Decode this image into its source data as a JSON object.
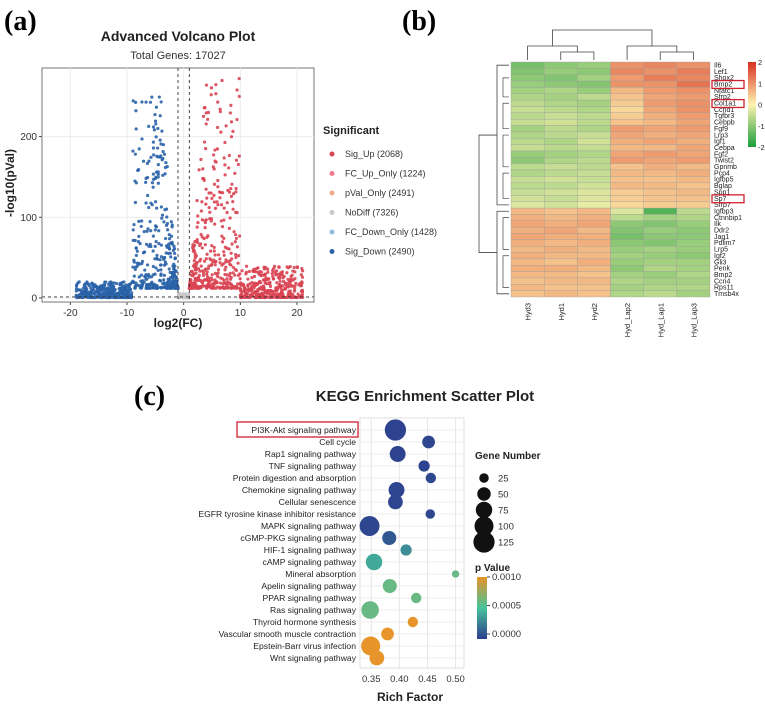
{
  "panels": {
    "a": {
      "label": "(a)"
    },
    "b": {
      "label": "(b)"
    },
    "c": {
      "label": "(c)"
    }
  },
  "chart_data": [
    {
      "id": "volcano",
      "type": "scatter",
      "title": "Advanced Volcano Plot",
      "subtitle": "Total Genes: 17027",
      "xlabel": "log2(FC)",
      "ylabel": "-log10(pVal)",
      "xlim": [
        -25,
        23
      ],
      "ylim": [
        -5,
        285
      ],
      "xticks": [
        -20,
        -10,
        0,
        10,
        20
      ],
      "yticks": [
        0,
        100,
        200
      ],
      "thresholds": {
        "x": [
          -1,
          1
        ],
        "y": [
          1.3
        ]
      },
      "grid": true,
      "legend": {
        "title": "Significant",
        "position": "right",
        "items": [
          {
            "label": "Sig_Up (2068)",
            "color": "#d94452"
          },
          {
            "label": "FC_Up_Only (1224)",
            "color": "#f07b8a"
          },
          {
            "label": "pVal_Only (2491)",
            "color": "#f2a98e"
          },
          {
            "label": "NoDiff (7326)",
            "color": "#c8c8c8"
          },
          {
            "label": "FC_Down_Only (1428)",
            "color": "#8fbde0"
          },
          {
            "label": "Sig_Down (2490)",
            "color": "#2a63a8"
          }
        ]
      }
    },
    {
      "id": "heatmap",
      "type": "heatmap",
      "columns": [
        "Hyd3",
        "Hyd1",
        "Hyd2",
        "Hyd_Lap2",
        "Hyd_Lap1",
        "Hyd_Lap3"
      ],
      "rows": [
        "Il6",
        "Lef1",
        "Shox2",
        "Bmp2",
        "Nfatc1",
        "Sfrp2",
        "Col1a1",
        "Ccnd1",
        "Tgfbr3",
        "Cebpb",
        "Fgf9",
        "Lrp3",
        "Igf1",
        "Cebpa",
        "Fgf2",
        "Twist2",
        "Gpnmb",
        "Pcp4",
        "Igfbp5",
        "Bglap",
        "Spp1",
        "Sp7",
        "Sfrp7",
        "Igfbp3",
        "Ctnnbip1",
        "Ilk",
        "Ddr2",
        "Jag1",
        "Pdlim7",
        "Lrp5",
        "Igf2",
        "Gli3",
        "Penk",
        "Bmp2",
        "Ccn4",
        "Rps11",
        "Tmsb4x"
      ],
      "highlighted_rows": [
        "Bmp2",
        "Col1a1",
        "Sp7"
      ],
      "values": [
        [
          -1.2,
          -1.0,
          -0.9,
          1.0,
          1.1,
          1.0
        ],
        [
          -1.1,
          -0.9,
          -1.0,
          1.1,
          1.0,
          1.2
        ],
        [
          -1.0,
          -1.1,
          -0.8,
          0.9,
          1.2,
          1.1
        ],
        [
          -0.9,
          -1.0,
          -1.1,
          1.0,
          1.0,
          1.3
        ],
        [
          -0.8,
          -0.7,
          -0.9,
          0.6,
          0.9,
          1.0
        ],
        [
          -0.7,
          -0.8,
          -0.6,
          0.5,
          0.8,
          0.9
        ],
        [
          -0.6,
          -0.7,
          -0.8,
          0.4,
          0.9,
          1.0
        ],
        [
          -0.5,
          -0.6,
          -0.7,
          0.3,
          0.8,
          1.0
        ],
        [
          -0.6,
          -0.5,
          -0.6,
          0.4,
          0.7,
          0.9
        ],
        [
          -0.5,
          -0.4,
          -0.6,
          0.5,
          0.6,
          0.8
        ],
        [
          -0.8,
          -0.6,
          -0.7,
          0.9,
          0.8,
          0.9
        ],
        [
          -0.7,
          -0.6,
          -0.5,
          0.8,
          0.7,
          0.8
        ],
        [
          -0.6,
          -0.7,
          -0.4,
          0.7,
          0.8,
          0.7
        ],
        [
          -0.5,
          -0.6,
          -0.5,
          0.6,
          0.6,
          0.8
        ],
        [
          -0.9,
          -0.8,
          -0.7,
          0.8,
          0.9,
          0.8
        ],
        [
          -1.0,
          -0.7,
          -0.6,
          0.9,
          0.8,
          0.9
        ],
        [
          -0.6,
          -0.5,
          -0.6,
          0.5,
          0.7,
          0.6
        ],
        [
          -0.7,
          -0.6,
          -0.5,
          0.6,
          0.6,
          0.7
        ],
        [
          -0.5,
          -0.4,
          -0.5,
          0.5,
          0.5,
          0.6
        ],
        [
          -0.6,
          -0.6,
          -0.4,
          0.6,
          0.6,
          0.5
        ],
        [
          -0.5,
          -0.4,
          -0.3,
          0.4,
          0.5,
          0.6
        ],
        [
          -0.4,
          -0.5,
          -0.3,
          0.4,
          0.5,
          0.5
        ],
        [
          -0.3,
          -0.4,
          -0.2,
          0.3,
          0.4,
          0.4
        ],
        [
          0.6,
          0.5,
          0.6,
          -0.3,
          -1.5,
          -0.6
        ],
        [
          0.7,
          0.6,
          0.7,
          -0.6,
          -0.8,
          -0.7
        ],
        [
          0.8,
          0.7,
          0.8,
          -1.0,
          -1.1,
          -0.9
        ],
        [
          0.7,
          0.8,
          0.6,
          -1.1,
          -0.9,
          -1.0
        ],
        [
          0.8,
          0.7,
          0.7,
          -1.2,
          -1.0,
          -1.0
        ],
        [
          0.7,
          0.6,
          0.7,
          -1.0,
          -1.1,
          -0.9
        ],
        [
          0.6,
          0.7,
          0.6,
          -0.9,
          -0.8,
          -0.9
        ],
        [
          0.7,
          0.6,
          0.6,
          -0.8,
          -0.9,
          -1.0
        ],
        [
          0.6,
          0.5,
          0.7,
          -0.9,
          -0.8,
          -0.8
        ],
        [
          0.7,
          0.7,
          0.6,
          -1.0,
          -0.7,
          -0.8
        ],
        [
          0.6,
          0.6,
          0.5,
          -0.8,
          -0.9,
          -0.7
        ],
        [
          0.5,
          0.6,
          0.6,
          -0.7,
          -0.8,
          -0.8
        ],
        [
          0.6,
          0.5,
          0.5,
          -0.8,
          -0.7,
          -0.7
        ],
        [
          0.5,
          0.6,
          0.5,
          -0.7,
          -0.6,
          -0.8
        ]
      ],
      "color_scale": {
        "min": -2,
        "max": 2,
        "ticks": [
          2,
          1,
          0,
          -1,
          -2
        ],
        "low": "#1b9e3a",
        "mid": "#fff3b0",
        "high": "#d7301f"
      }
    },
    {
      "id": "kegg",
      "type": "scatter",
      "title": "KEGG Enrichment Scatter Plot",
      "xlabel": "Rich Factor",
      "xlim": [
        0.33,
        0.515
      ],
      "xticks": [
        0.35,
        0.4,
        0.45,
        0.5
      ],
      "xticklabels": [
        "0.35",
        "0.40",
        "0.45",
        "0.50"
      ],
      "grid": true,
      "highlighted_category": "PI3K-Akt signaling pathway",
      "categories": [
        "PI3K-Akt signaling pathway",
        "Cell cycle",
        "Rap1 signaling pathway",
        "TNF signaling pathway",
        "Protein digestion and absorption",
        "Chemokine signaling pathway",
        "Cellular senescence",
        "EGFR tyrosine kinase inhibitor resistance",
        "MAPK signaling pathway",
        "cGMP-PKG signaling pathway",
        "HIF-1 signaling pathway",
        "cAMP signaling pathway",
        "Mineral absorption",
        "Apelin signaling pathway",
        "PPAR signaling pathway",
        "Ras signaling pathway",
        "Thyroid hormone synthesis",
        "Vascular smooth muscle contraction",
        "Epstein-Barr virus infection",
        "Wnt signaling pathway"
      ],
      "points": [
        {
          "x": 0.393,
          "gene_number": 125,
          "p_value": 2e-05
        },
        {
          "x": 0.452,
          "gene_number": 45,
          "p_value": 3e-05
        },
        {
          "x": 0.397,
          "gene_number": 70,
          "p_value": 2e-05
        },
        {
          "x": 0.444,
          "gene_number": 35,
          "p_value": 2e-05
        },
        {
          "x": 0.456,
          "gene_number": 30,
          "p_value": 4e-05
        },
        {
          "x": 0.395,
          "gene_number": 70,
          "p_value": 3e-05
        },
        {
          "x": 0.393,
          "gene_number": 60,
          "p_value": 3e-05
        },
        {
          "x": 0.455,
          "gene_number": 25,
          "p_value": 3e-05
        },
        {
          "x": 0.347,
          "gene_number": 110,
          "p_value": 3e-05
        },
        {
          "x": 0.382,
          "gene_number": 55,
          "p_value": 0.0001
        },
        {
          "x": 0.412,
          "gene_number": 35,
          "p_value": 0.0003
        },
        {
          "x": 0.355,
          "gene_number": 75,
          "p_value": 0.0004
        },
        {
          "x": 0.5,
          "gene_number": 15,
          "p_value": 0.0006
        },
        {
          "x": 0.383,
          "gene_number": 55,
          "p_value": 0.0006
        },
        {
          "x": 0.43,
          "gene_number": 30,
          "p_value": 0.0006
        },
        {
          "x": 0.348,
          "gene_number": 85,
          "p_value": 0.0006
        },
        {
          "x": 0.424,
          "gene_number": 30,
          "p_value": 0.001
        },
        {
          "x": 0.379,
          "gene_number": 45,
          "p_value": 0.001
        },
        {
          "x": 0.349,
          "gene_number": 100,
          "p_value": 0.001
        },
        {
          "x": 0.36,
          "gene_number": 60,
          "p_value": 0.001
        }
      ],
      "size_legend": {
        "title": "Gene Number",
        "values": [
          25,
          50,
          75,
          100,
          125
        ]
      },
      "color_legend": {
        "title": "p Value",
        "ticks": [
          "0.0010",
          "0.0005",
          "0.0000"
        ],
        "min": 0,
        "max": 0.001,
        "low_color": "#2c3e8f",
        "mid_color": "#48c29b",
        "high_color": "#e7952a"
      }
    }
  ]
}
